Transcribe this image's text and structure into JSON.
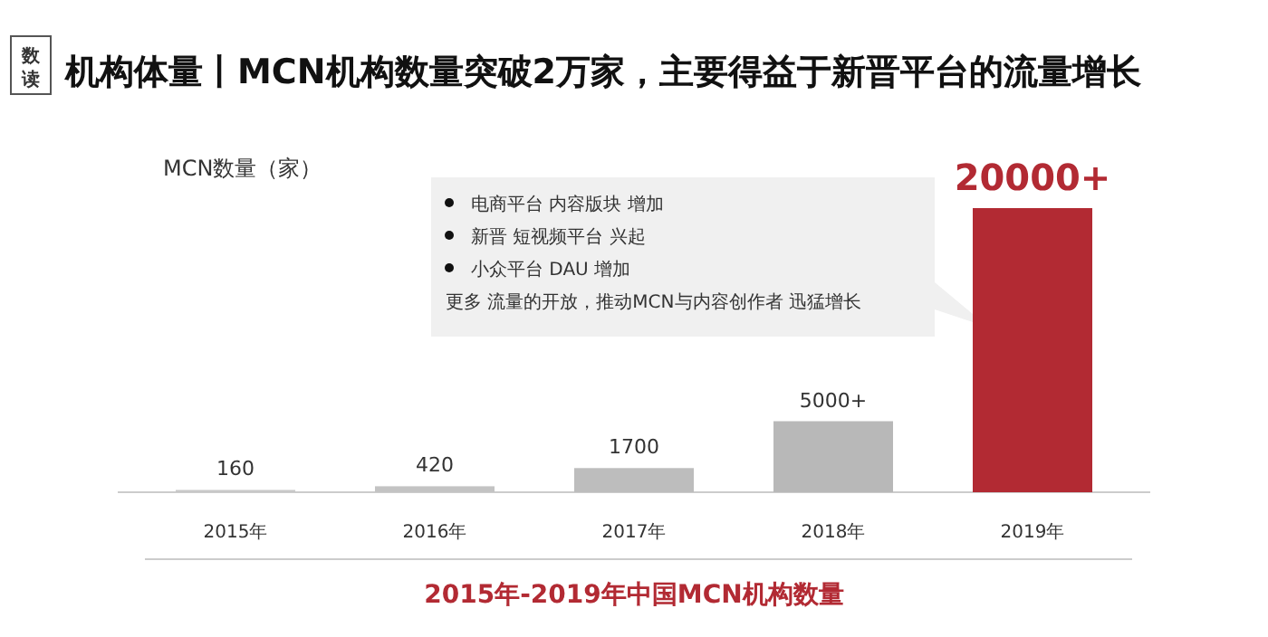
{
  "chart_data": {
    "type": "bar",
    "title": "机构体量丨MCN机构数量突破2万家，主要得益于新晋平台的流量增长",
    "subtitle": "2015年-2019年中国MCN机构数量",
    "ylabel": "MCN数量（家）",
    "categories": [
      "2015年",
      "2016年",
      "2017年",
      "2018年",
      "2019年"
    ],
    "values": [
      160,
      420,
      1700,
      5000,
      20000
    ],
    "value_labels": [
      "160",
      "420",
      "1700",
      "5000+",
      "20000+"
    ],
    "colors": [
      "#c8c8c8",
      "#c3c3c3",
      "#bdbdbd",
      "#b8b8b8",
      "#b22a33"
    ],
    "annotations": [
      "数读",
      "电商平台 内容版块 增加",
      "新晋 短视频平台 兴起",
      "小众平台 DAU 增加",
      "更多 流量的开放，推动MCN与内容创作者 迅猛增长"
    ]
  }
}
